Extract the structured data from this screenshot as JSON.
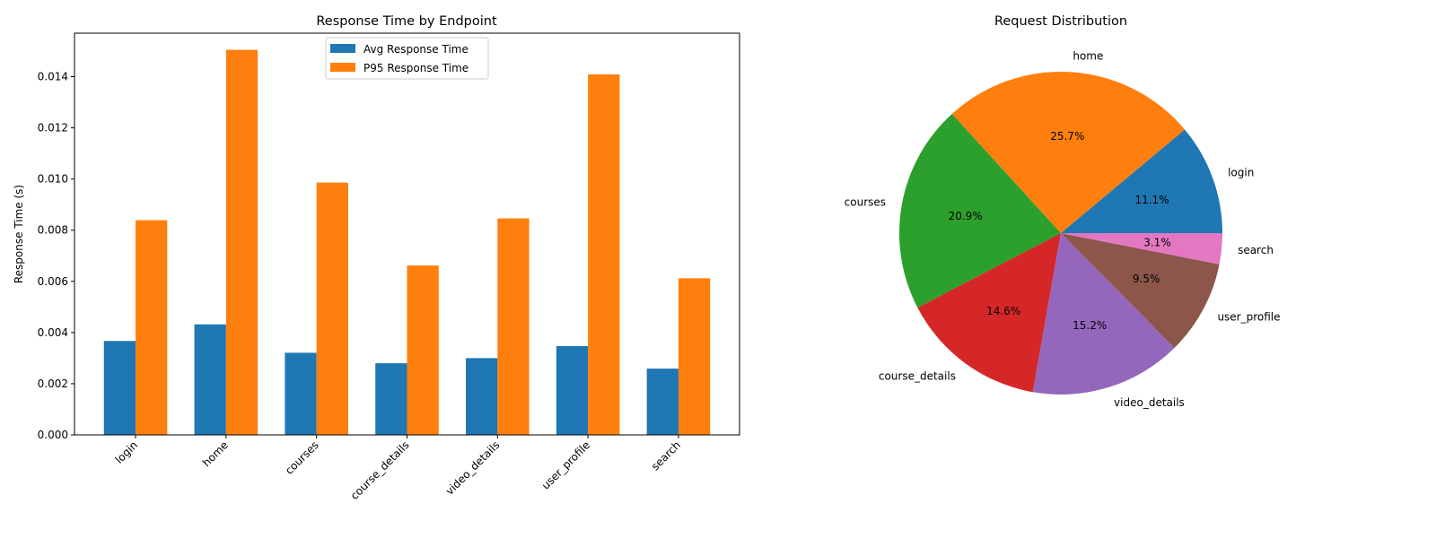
{
  "chart_data": [
    {
      "type": "bar",
      "title": "Response Time by Endpoint",
      "xlabel": "",
      "ylabel": "Response Time (s)",
      "categories": [
        "login",
        "home",
        "courses",
        "course_details",
        "video_details",
        "user_profile",
        "search"
      ],
      "series": [
        {
          "name": "Avg Response Time",
          "color": "#1f77b4",
          "values": [
            0.00367,
            0.00432,
            0.00321,
            0.0028,
            0.003,
            0.00347,
            0.00259
          ]
        },
        {
          "name": "P95 Response Time",
          "color": "#ff7f0e",
          "values": [
            0.00839,
            0.01505,
            0.00986,
            0.00662,
            0.00846,
            0.01409,
            0.00612
          ]
        }
      ],
      "ylim": [
        0,
        0.0157
      ],
      "yticks": [
        "0.000",
        "0.002",
        "0.004",
        "0.006",
        "0.008",
        "0.010",
        "0.012",
        "0.014"
      ],
      "legend": "upper-center",
      "grid": false
    },
    {
      "type": "pie",
      "title": "Request Distribution",
      "labels": [
        "login",
        "home",
        "courses",
        "course_details",
        "video_details",
        "user_profile",
        "search"
      ],
      "values": [
        11.1,
        25.7,
        20.9,
        14.6,
        15.2,
        9.5,
        3.1
      ],
      "autopct": [
        "11.1%",
        "25.7%",
        "20.9%",
        "14.6%",
        "15.2%",
        "9.5%",
        "3.1%"
      ],
      "colors": [
        "#1f77b4",
        "#ff7f0e",
        "#2ca02c",
        "#d62728",
        "#9467bd",
        "#8c564b",
        "#e377c2"
      ]
    }
  ]
}
